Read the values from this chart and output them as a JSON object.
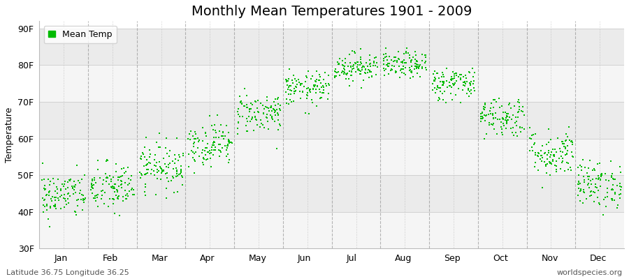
{
  "title": "Monthly Mean Temperatures 1901 - 2009",
  "ylabel": "Temperature",
  "ylim": [
    30,
    92
  ],
  "yticks": [
    30,
    40,
    50,
    60,
    70,
    80,
    90
  ],
  "ytick_labels": [
    "30F",
    "40F",
    "50F",
    "60F",
    "70F",
    "80F",
    "90F"
  ],
  "months": [
    "Jan",
    "Feb",
    "Mar",
    "Apr",
    "May",
    "Jun",
    "Jul",
    "Aug",
    "Sep",
    "Oct",
    "Nov",
    "Dec"
  ],
  "month_means_f": [
    44.5,
    46.5,
    52.5,
    58.5,
    67.0,
    73.5,
    79.5,
    80.0,
    75.0,
    66.0,
    56.0,
    47.5
  ],
  "month_stds_f": [
    3.2,
    3.5,
    3.2,
    3.0,
    2.8,
    2.3,
    2.0,
    1.8,
    2.3,
    2.8,
    3.3,
    3.2
  ],
  "n_years": 109,
  "dot_color": "#00BB00",
  "dot_size": 2,
  "legend_label": "Mean Temp",
  "footnote_left": "Latitude 36.75 Longitude 36.25",
  "footnote_right": "worldspecies.org",
  "bg_color": "#ffffff",
  "stripe_color_light": "#f5f5f5",
  "stripe_color_dark": "#ebebeb",
  "title_fontsize": 14,
  "axis_label_fontsize": 9,
  "tick_fontsize": 9,
  "footnote_fontsize": 8,
  "vline_color": "#888888",
  "hline_color": "#cccccc"
}
